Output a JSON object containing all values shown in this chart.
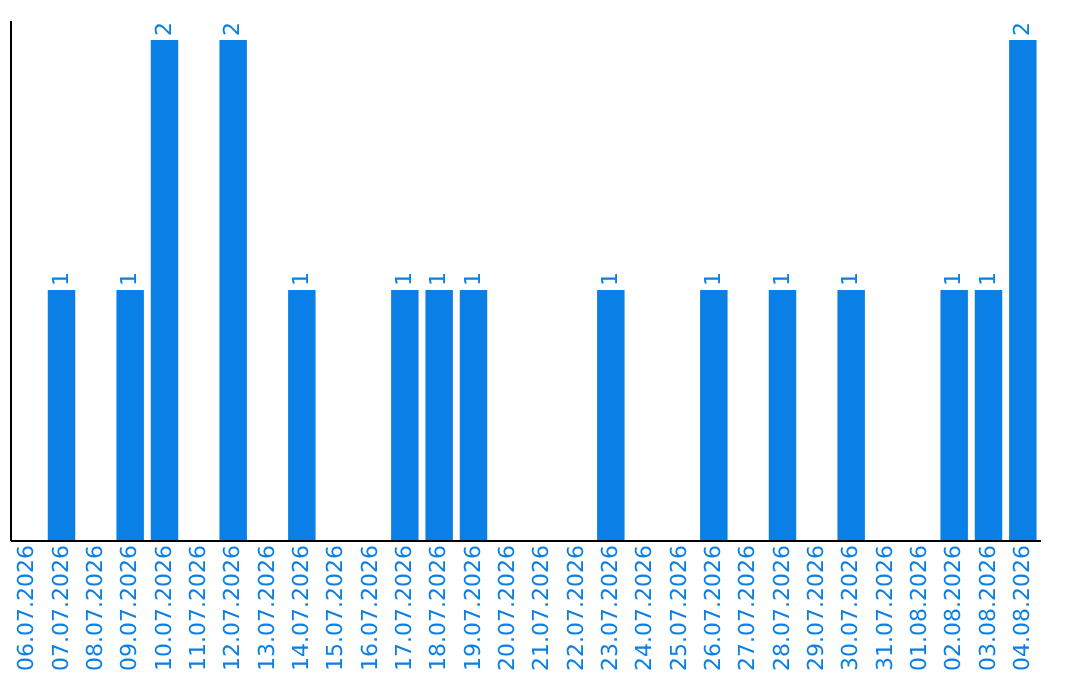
{
  "chart_data": {
    "type": "bar",
    "categories": [
      "06.07.2026",
      "07.07.2026",
      "08.07.2026",
      "09.07.2026",
      "10.07.2026",
      "11.07.2026",
      "12.07.2026",
      "13.07.2026",
      "14.07.2026",
      "15.07.2026",
      "16.07.2026",
      "17.07.2026",
      "18.07.2026",
      "19.07.2026",
      "20.07.2026",
      "21.07.2026",
      "22.07.2026",
      "23.07.2026",
      "24.07.2026",
      "25.07.2026",
      "26.07.2026",
      "27.07.2026",
      "28.07.2026",
      "29.07.2026",
      "30.07.2026",
      "31.07.2026",
      "01.08.2026",
      "02.08.2026",
      "03.08.2026",
      "04.08.2026"
    ],
    "values": [
      0,
      1,
      0,
      1,
      2,
      0,
      2,
      0,
      1,
      0,
      0,
      1,
      1,
      1,
      0,
      0,
      0,
      1,
      0,
      0,
      1,
      0,
      1,
      0,
      1,
      0,
      0,
      1,
      1,
      2
    ],
    "value_labels": [
      null,
      "1",
      null,
      "1",
      "2",
      null,
      "2",
      null,
      "1",
      null,
      null,
      "1",
      "1",
      "1",
      null,
      null,
      null,
      "1",
      null,
      null,
      "1",
      null,
      "1",
      null,
      "1",
      null,
      null,
      "1",
      "1",
      "2"
    ],
    "color": "#0a7fe6",
    "grid": false,
    "tick_labels": "x"
  }
}
